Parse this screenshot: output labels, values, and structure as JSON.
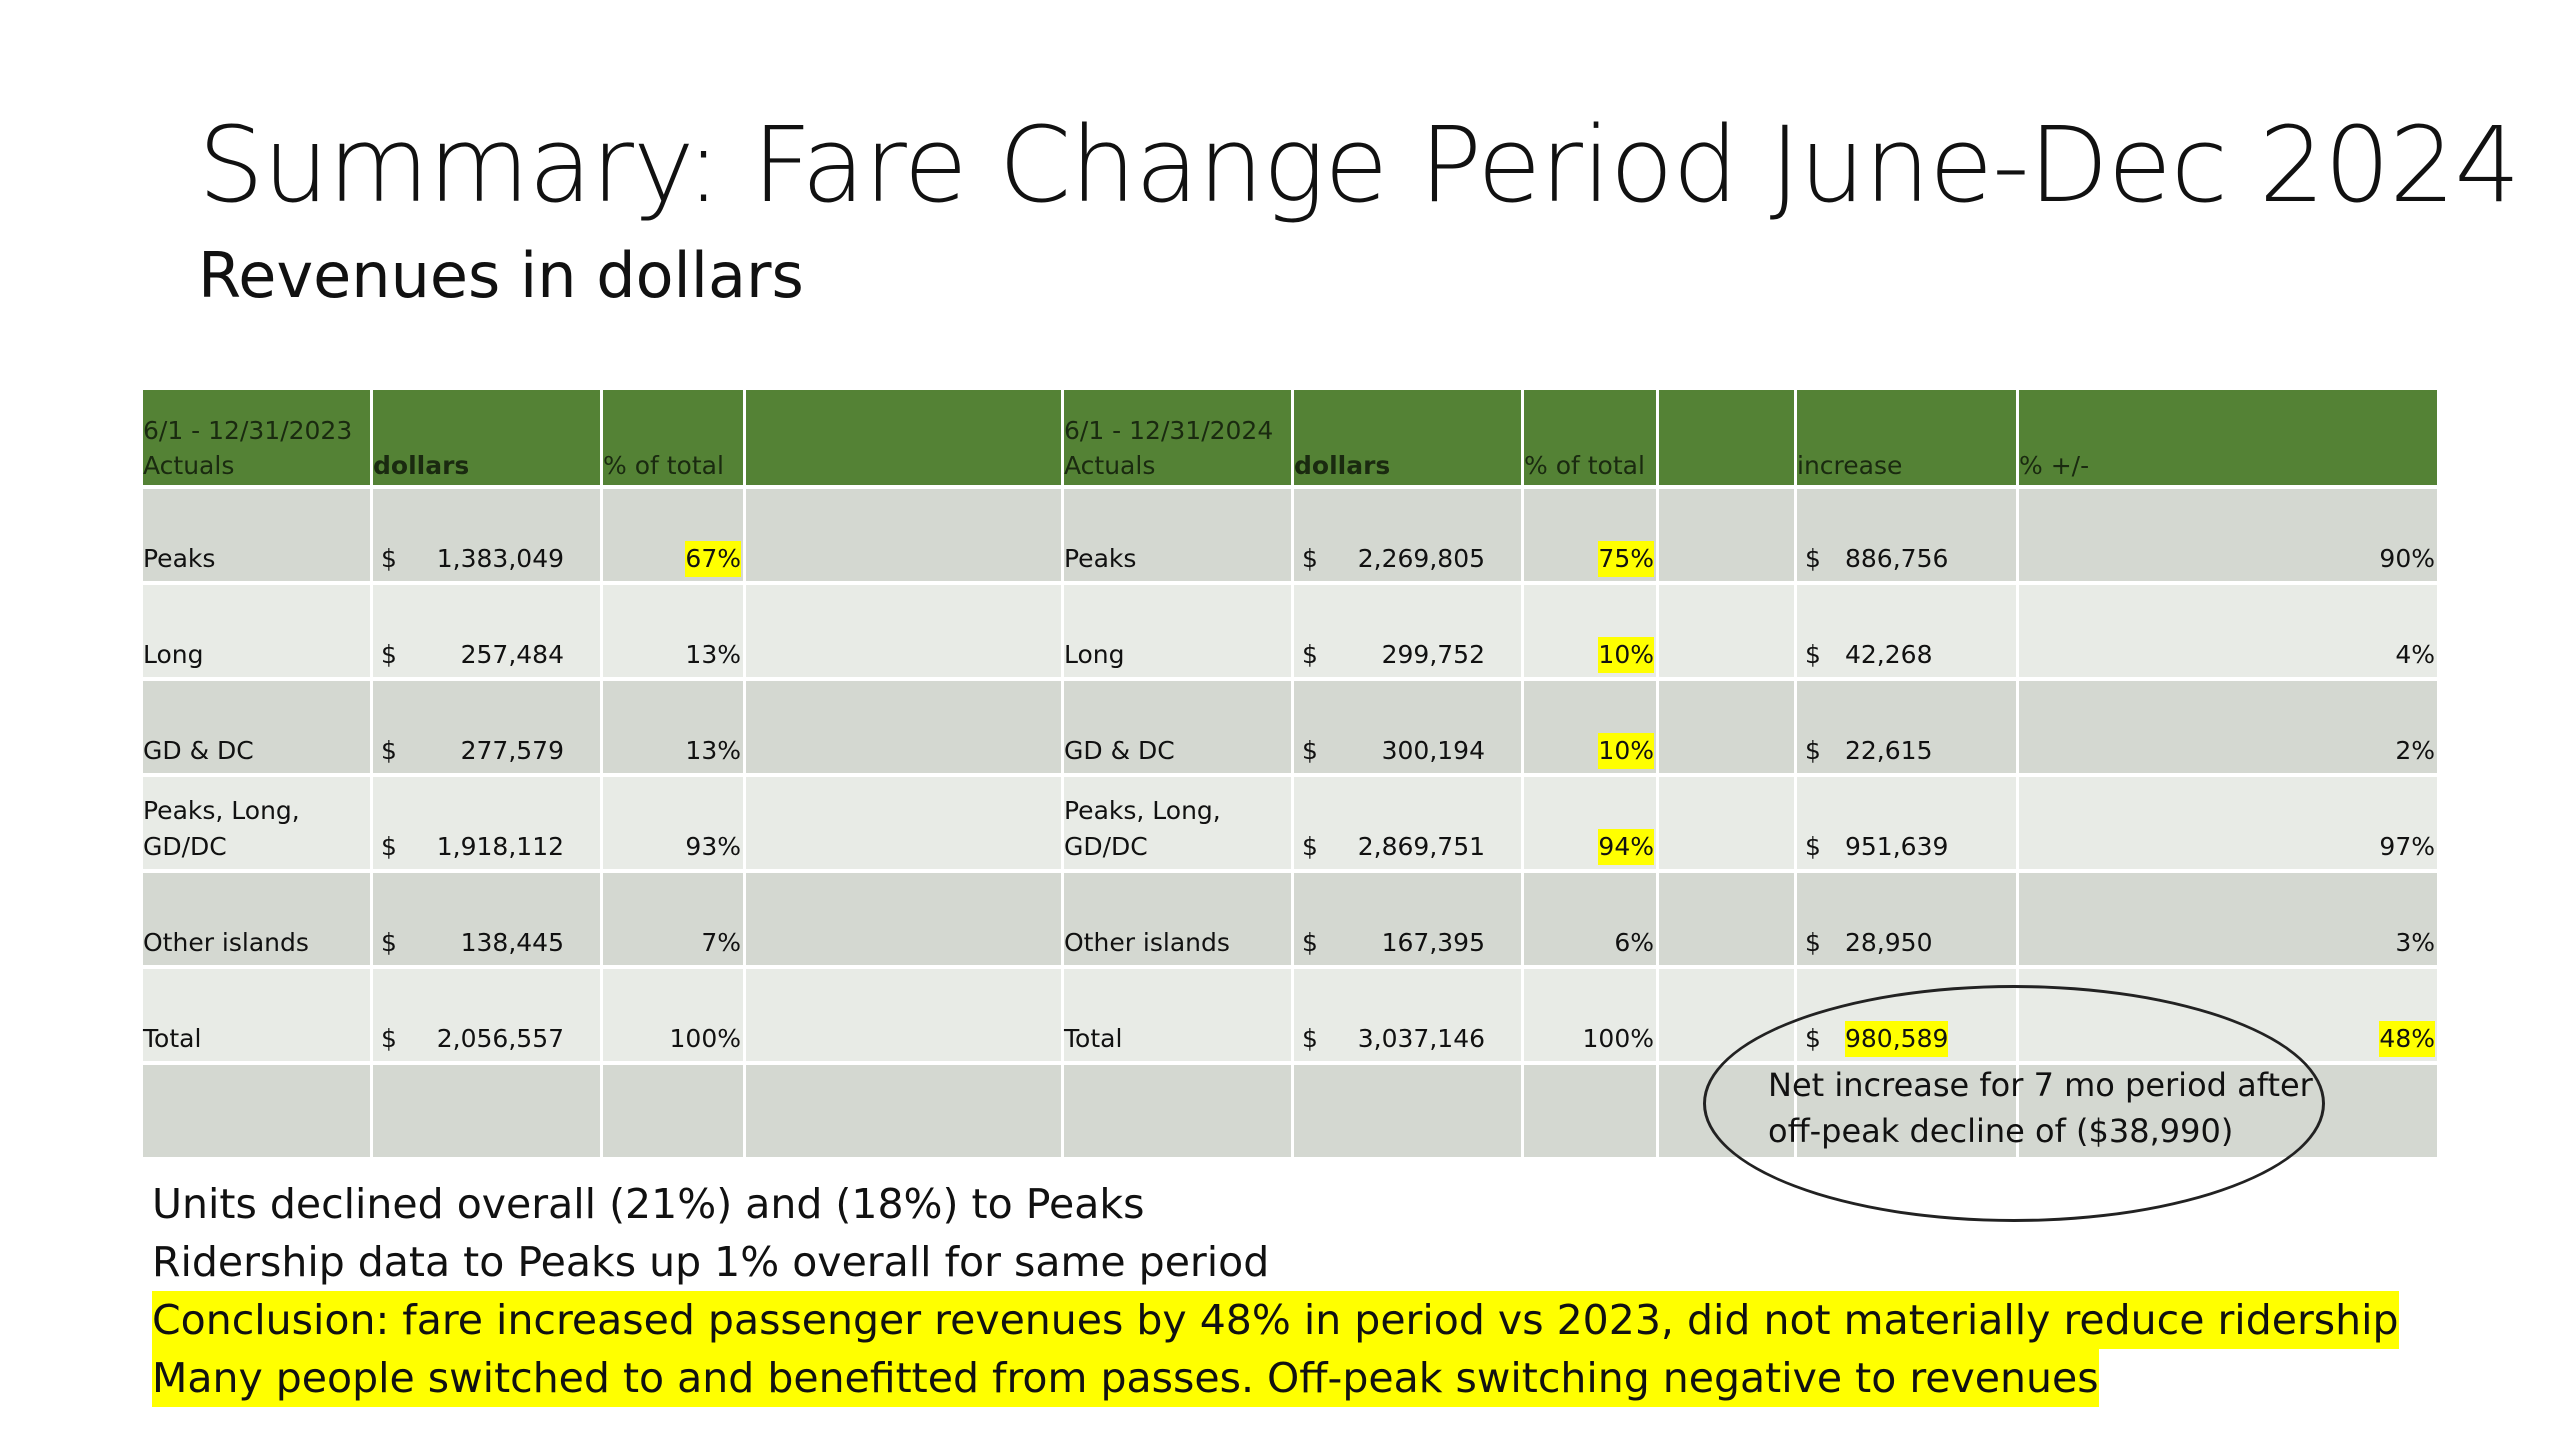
{
  "title": "Summary: Fare Change Period June-Dec 2024",
  "subtitle": "Revenues in dollars",
  "table": {
    "headers": {
      "left_period_line1": "6/1 - 12/31/2023",
      "left_period_line2": "Actuals",
      "left_dollars": "dollars",
      "left_pct": "% of total",
      "right_period_line1": "6/1 - 12/31/2024",
      "right_period_line2": "Actuals",
      "right_dollars": "dollars",
      "right_pct": "% of total",
      "increase": "increase",
      "pct_change": "% +/-"
    },
    "currency": "$",
    "rows": [
      {
        "label_l1": "",
        "label": "Peaks",
        "amt_2023": "1,383,049",
        "pct_2023": "67%",
        "amt_2024": "2,269,805",
        "pct_2024": "75%",
        "increase": "886,756",
        "change": "90%"
      },
      {
        "label_l1": "",
        "label": "Long",
        "amt_2023": "257,484",
        "pct_2023": "13%",
        "amt_2024": "299,752",
        "pct_2024": "10%",
        "increase": "42,268",
        "change": "4%"
      },
      {
        "label_l1": "",
        "label": "GD & DC",
        "amt_2023": "277,579",
        "pct_2023": "13%",
        "amt_2024": "300,194",
        "pct_2024": "10%",
        "increase": "22,615",
        "change": "2%"
      },
      {
        "label_l1": "Peaks, Long,",
        "label": "GD/DC",
        "amt_2023": "1,918,112",
        "pct_2023": "93%",
        "amt_2024": "2,869,751",
        "pct_2024": "94%",
        "increase": "951,639",
        "change": "97%"
      },
      {
        "label_l1": "",
        "label": "Other islands",
        "amt_2023": "138,445",
        "pct_2023": "7%",
        "amt_2024": "167,395",
        "pct_2024": "6%",
        "increase": "28,950",
        "change": "3%"
      },
      {
        "label_l1": "",
        "label": "Total",
        "amt_2023": "2,056,557",
        "pct_2023": "100%",
        "amt_2024": "3,037,146",
        "pct_2024": "100%",
        "increase": "980,589",
        "change": "48%"
      }
    ]
  },
  "callout": {
    "line1": "Net increase for 7 mo period after",
    "line2": "off-peak decline of ($38,990)"
  },
  "notes": {
    "line1": "Units declined overall (21%) and (18%) to Peaks",
    "line2": "Ridership data to Peaks up 1% overall for same period",
    "conclusion1": "Conclusion: fare increased passenger revenues by 48% in period vs 2023, did not materially reduce ridership",
    "conclusion2": "Many people switched to and benefitted from passes. Off-peak switching negative to revenues"
  },
  "colors": {
    "header_green": "#548235",
    "row_dark": "#d4d8d1",
    "row_light": "#e8ebe6",
    "highlight": "#ffff00"
  }
}
